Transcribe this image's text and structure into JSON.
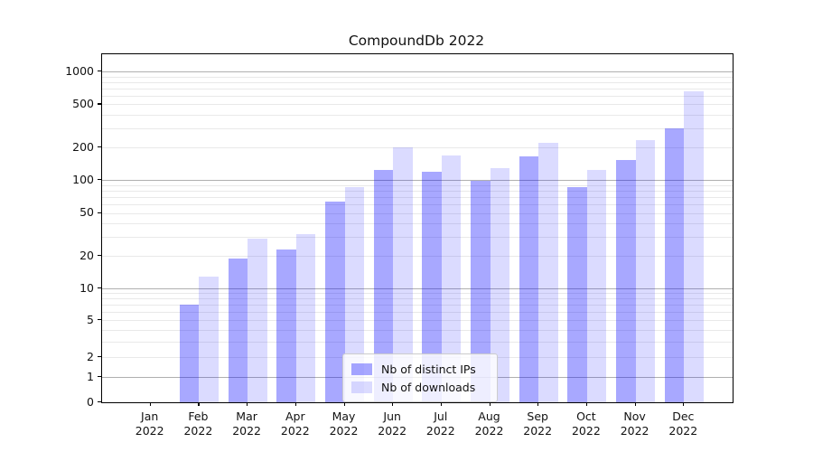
{
  "chart_data": {
    "type": "bar",
    "title": "CompoundDb 2022",
    "x_year": "2022",
    "categories": [
      "Jan",
      "Feb",
      "Mar",
      "Apr",
      "May",
      "Jun",
      "Jul",
      "Aug",
      "Sep",
      "Oct",
      "Nov",
      "Dec"
    ],
    "series": [
      {
        "name": "Nb of distinct IPs",
        "color": "rgba(0,0,255,0.34)",
        "values": [
          0,
          7,
          19,
          23,
          63,
          125,
          120,
          98,
          165,
          86,
          155,
          300
        ]
      },
      {
        "name": "Nb of downloads",
        "color": "rgba(0,0,255,0.14)",
        "values": [
          0,
          13,
          29,
          32,
          87,
          200,
          170,
          130,
          220,
          125,
          235,
          660
        ]
      }
    ],
    "yscale": "symlog",
    "yticks": [
      1000,
      500,
      200,
      100,
      50,
      20,
      10,
      5,
      2,
      1,
      0
    ],
    "ylim": [
      0,
      1400
    ],
    "xlabel": "",
    "ylabel": "",
    "grid": {
      "orientation": "horizontal",
      "major_color": "#b0b0b0",
      "minor_color": "#e9e9e9"
    },
    "legend_position": "lower center"
  }
}
